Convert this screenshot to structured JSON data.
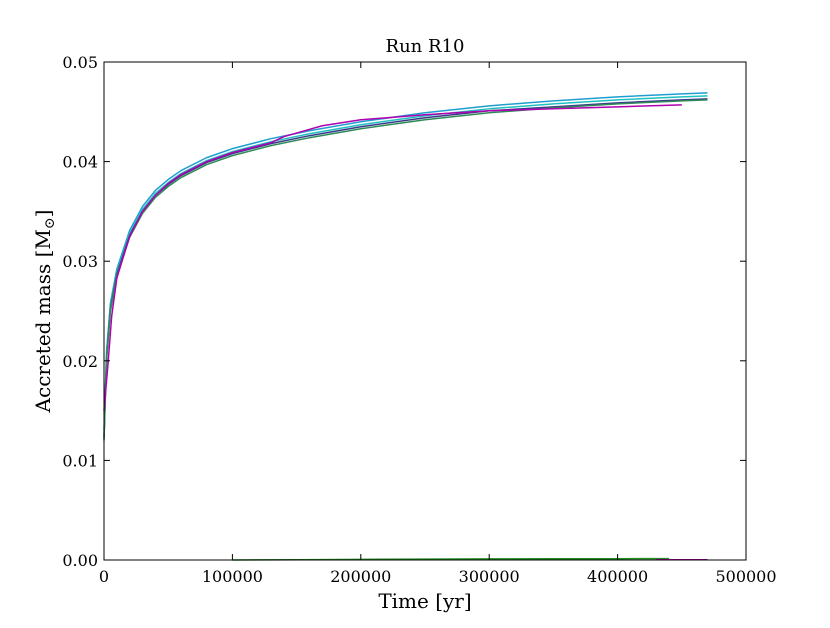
{
  "chart_data": {
    "type": "line",
    "title": "Run R10",
    "xlabel": "Time [yr]",
    "ylabel": "Accreted mass [M",
    "ylabel_sub": "⊙",
    "ylabel_close": "]",
    "xlim": [
      0,
      500000
    ],
    "ylim": [
      0.0,
      0.05
    ],
    "x_ticks": [
      0,
      100000,
      200000,
      300000,
      400000,
      500000
    ],
    "x_tick_labels": [
      "0",
      "100000",
      "200000",
      "300000",
      "400000",
      "500000"
    ],
    "y_ticks": [
      0.0,
      0.01,
      0.02,
      0.03,
      0.04,
      0.05
    ],
    "y_tick_labels": [
      "0.00",
      "0.01",
      "0.02",
      "0.03",
      "0.04",
      "0.05"
    ],
    "grid": false,
    "legend": "none",
    "series": [
      {
        "color": "#1f9fd0",
        "x": [
          0,
          2000,
          5000,
          10000,
          20000,
          30000,
          40000,
          50000,
          60000,
          80000,
          100000,
          130000,
          160000,
          200000,
          250000,
          300000,
          350000,
          400000,
          450000,
          470000
        ],
        "y": [
          0.013,
          0.021,
          0.0258,
          0.0292,
          0.0331,
          0.0355,
          0.0371,
          0.0382,
          0.0391,
          0.0404,
          0.0413,
          0.0423,
          0.0431,
          0.044,
          0.0449,
          0.0456,
          0.0461,
          0.0465,
          0.0468,
          0.0469
        ]
      },
      {
        "color": "#20c0c0",
        "x": [
          0,
          2000,
          5000,
          10000,
          20000,
          30000,
          40000,
          50000,
          60000,
          80000,
          100000,
          130000,
          160000,
          200000,
          250000,
          300000,
          350000,
          400000,
          450000,
          470000
        ],
        "y": [
          0.0125,
          0.0206,
          0.0255,
          0.0289,
          0.0328,
          0.0352,
          0.0368,
          0.0379,
          0.0388,
          0.0401,
          0.041,
          0.042,
          0.0428,
          0.0437,
          0.0446,
          0.0453,
          0.0458,
          0.0462,
          0.0465,
          0.0466
        ]
      },
      {
        "color": "#3a3a8a",
        "x": [
          0,
          2000,
          5000,
          10000,
          20000,
          30000,
          40000,
          50000,
          60000,
          80000,
          100000,
          130000,
          160000,
          200000,
          250000,
          300000,
          350000,
          400000,
          450000,
          470000
        ],
        "y": [
          0.0122,
          0.0203,
          0.0252,
          0.0287,
          0.0326,
          0.035,
          0.0366,
          0.0377,
          0.0386,
          0.0399,
          0.0408,
          0.0418,
          0.0426,
          0.0435,
          0.0444,
          0.0451,
          0.0455,
          0.0459,
          0.0462,
          0.0463
        ]
      },
      {
        "color": "#2e8b57",
        "x": [
          0,
          2000,
          5000,
          10000,
          20000,
          30000,
          40000,
          50000,
          60000,
          80000,
          100000,
          130000,
          160000,
          200000,
          250000,
          300000,
          350000,
          400000,
          450000,
          470000
        ],
        "y": [
          0.012,
          0.0201,
          0.025,
          0.0285,
          0.0324,
          0.0348,
          0.0364,
          0.0375,
          0.0384,
          0.0397,
          0.0406,
          0.0416,
          0.0424,
          0.0433,
          0.0442,
          0.0449,
          0.0454,
          0.0458,
          0.0461,
          0.0462
        ]
      },
      {
        "color": "#b000b0",
        "x": [
          0,
          3000,
          6000,
          10000,
          20000,
          30000,
          40000,
          50000,
          60000,
          80000,
          100000,
          130000,
          140000,
          170000,
          200000,
          250000,
          300000,
          350000,
          400000,
          450000
        ],
        "y": [
          0.015,
          0.0195,
          0.0245,
          0.0283,
          0.0325,
          0.035,
          0.0366,
          0.0378,
          0.0387,
          0.04,
          0.0409,
          0.0419,
          0.0425,
          0.0436,
          0.0442,
          0.0447,
          0.0451,
          0.0453,
          0.0455,
          0.0457
        ]
      },
      {
        "color": "#228b22",
        "x": [
          100000,
          150000,
          200000,
          250000,
          300000,
          350000,
          400000,
          440000
        ],
        "y": [
          0.0,
          3e-05,
          6e-05,
          9e-05,
          0.00011,
          0.00012,
          0.00013,
          0.00014
        ]
      },
      {
        "color": "#b000b0",
        "x": [
          430000,
          450000,
          470000
        ],
        "y": [
          2e-05,
          3e-05,
          2e-05
        ]
      }
    ]
  }
}
